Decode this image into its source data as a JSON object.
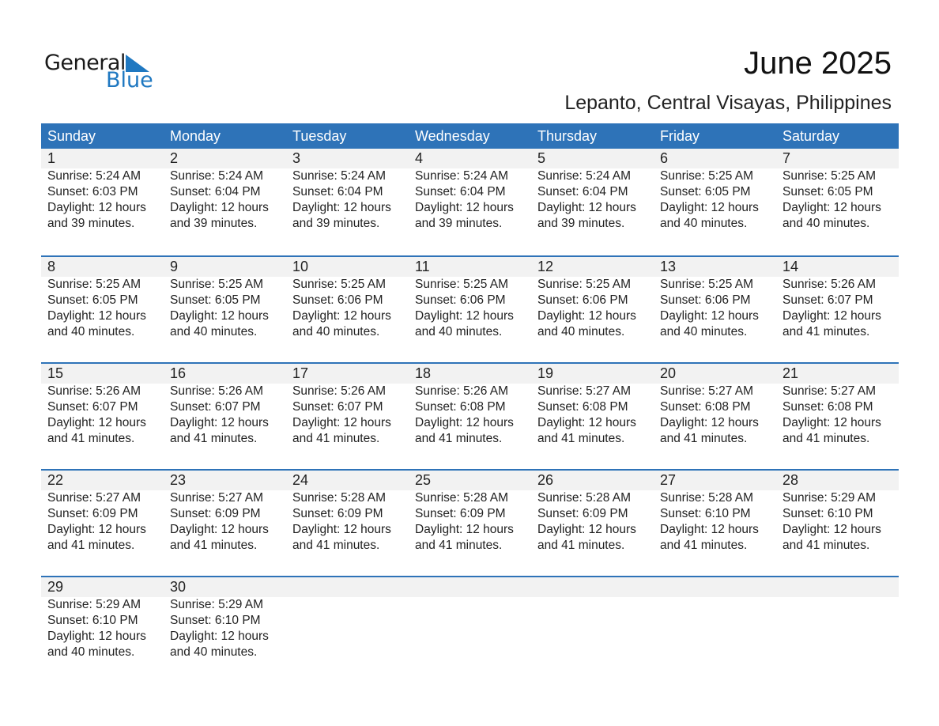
{
  "logo": {
    "word1": "General",
    "word2": "Blue",
    "color": "#1f78c1"
  },
  "title": "June 2025",
  "subtitle": "Lepanto, Central Visayas, Philippines",
  "header_color": "#2e73b8",
  "weekdays": [
    "Sunday",
    "Monday",
    "Tuesday",
    "Wednesday",
    "Thursday",
    "Friday",
    "Saturday"
  ],
  "start_offset": 0,
  "days": [
    {
      "d": "1",
      "sunrise": "Sunrise: 5:24 AM",
      "sunset": "Sunset: 6:03 PM",
      "daylight": "Daylight: 12 hours",
      "minutes": "and 39 minutes."
    },
    {
      "d": "2",
      "sunrise": "Sunrise: 5:24 AM",
      "sunset": "Sunset: 6:04 PM",
      "daylight": "Daylight: 12 hours",
      "minutes": "and 39 minutes."
    },
    {
      "d": "3",
      "sunrise": "Sunrise: 5:24 AM",
      "sunset": "Sunset: 6:04 PM",
      "daylight": "Daylight: 12 hours",
      "minutes": "and 39 minutes."
    },
    {
      "d": "4",
      "sunrise": "Sunrise: 5:24 AM",
      "sunset": "Sunset: 6:04 PM",
      "daylight": "Daylight: 12 hours",
      "minutes": "and 39 minutes."
    },
    {
      "d": "5",
      "sunrise": "Sunrise: 5:24 AM",
      "sunset": "Sunset: 6:04 PM",
      "daylight": "Daylight: 12 hours",
      "minutes": "and 39 minutes."
    },
    {
      "d": "6",
      "sunrise": "Sunrise: 5:25 AM",
      "sunset": "Sunset: 6:05 PM",
      "daylight": "Daylight: 12 hours",
      "minutes": "and 40 minutes."
    },
    {
      "d": "7",
      "sunrise": "Sunrise: 5:25 AM",
      "sunset": "Sunset: 6:05 PM",
      "daylight": "Daylight: 12 hours",
      "minutes": "and 40 minutes."
    },
    {
      "d": "8",
      "sunrise": "Sunrise: 5:25 AM",
      "sunset": "Sunset: 6:05 PM",
      "daylight": "Daylight: 12 hours",
      "minutes": "and 40 minutes."
    },
    {
      "d": "9",
      "sunrise": "Sunrise: 5:25 AM",
      "sunset": "Sunset: 6:05 PM",
      "daylight": "Daylight: 12 hours",
      "minutes": "and 40 minutes."
    },
    {
      "d": "10",
      "sunrise": "Sunrise: 5:25 AM",
      "sunset": "Sunset: 6:06 PM",
      "daylight": "Daylight: 12 hours",
      "minutes": "and 40 minutes."
    },
    {
      "d": "11",
      "sunrise": "Sunrise: 5:25 AM",
      "sunset": "Sunset: 6:06 PM",
      "daylight": "Daylight: 12 hours",
      "minutes": "and 40 minutes."
    },
    {
      "d": "12",
      "sunrise": "Sunrise: 5:25 AM",
      "sunset": "Sunset: 6:06 PM",
      "daylight": "Daylight: 12 hours",
      "minutes": "and 40 minutes."
    },
    {
      "d": "13",
      "sunrise": "Sunrise: 5:25 AM",
      "sunset": "Sunset: 6:06 PM",
      "daylight": "Daylight: 12 hours",
      "minutes": "and 40 minutes."
    },
    {
      "d": "14",
      "sunrise": "Sunrise: 5:26 AM",
      "sunset": "Sunset: 6:07 PM",
      "daylight": "Daylight: 12 hours",
      "minutes": "and 41 minutes."
    },
    {
      "d": "15",
      "sunrise": "Sunrise: 5:26 AM",
      "sunset": "Sunset: 6:07 PM",
      "daylight": "Daylight: 12 hours",
      "minutes": "and 41 minutes."
    },
    {
      "d": "16",
      "sunrise": "Sunrise: 5:26 AM",
      "sunset": "Sunset: 6:07 PM",
      "daylight": "Daylight: 12 hours",
      "minutes": "and 41 minutes."
    },
    {
      "d": "17",
      "sunrise": "Sunrise: 5:26 AM",
      "sunset": "Sunset: 6:07 PM",
      "daylight": "Daylight: 12 hours",
      "minutes": "and 41 minutes."
    },
    {
      "d": "18",
      "sunrise": "Sunrise: 5:26 AM",
      "sunset": "Sunset: 6:08 PM",
      "daylight": "Daylight: 12 hours",
      "minutes": "and 41 minutes."
    },
    {
      "d": "19",
      "sunrise": "Sunrise: 5:27 AM",
      "sunset": "Sunset: 6:08 PM",
      "daylight": "Daylight: 12 hours",
      "minutes": "and 41 minutes."
    },
    {
      "d": "20",
      "sunrise": "Sunrise: 5:27 AM",
      "sunset": "Sunset: 6:08 PM",
      "daylight": "Daylight: 12 hours",
      "minutes": "and 41 minutes."
    },
    {
      "d": "21",
      "sunrise": "Sunrise: 5:27 AM",
      "sunset": "Sunset: 6:08 PM",
      "daylight": "Daylight: 12 hours",
      "minutes": "and 41 minutes."
    },
    {
      "d": "22",
      "sunrise": "Sunrise: 5:27 AM",
      "sunset": "Sunset: 6:09 PM",
      "daylight": "Daylight: 12 hours",
      "minutes": "and 41 minutes."
    },
    {
      "d": "23",
      "sunrise": "Sunrise: 5:27 AM",
      "sunset": "Sunset: 6:09 PM",
      "daylight": "Daylight: 12 hours",
      "minutes": "and 41 minutes."
    },
    {
      "d": "24",
      "sunrise": "Sunrise: 5:28 AM",
      "sunset": "Sunset: 6:09 PM",
      "daylight": "Daylight: 12 hours",
      "minutes": "and 41 minutes."
    },
    {
      "d": "25",
      "sunrise": "Sunrise: 5:28 AM",
      "sunset": "Sunset: 6:09 PM",
      "daylight": "Daylight: 12 hours",
      "minutes": "and 41 minutes."
    },
    {
      "d": "26",
      "sunrise": "Sunrise: 5:28 AM",
      "sunset": "Sunset: 6:09 PM",
      "daylight": "Daylight: 12 hours",
      "minutes": "and 41 minutes."
    },
    {
      "d": "27",
      "sunrise": "Sunrise: 5:28 AM",
      "sunset": "Sunset: 6:10 PM",
      "daylight": "Daylight: 12 hours",
      "minutes": "and 41 minutes."
    },
    {
      "d": "28",
      "sunrise": "Sunrise: 5:29 AM",
      "sunset": "Sunset: 6:10 PM",
      "daylight": "Daylight: 12 hours",
      "minutes": "and 41 minutes."
    },
    {
      "d": "29",
      "sunrise": "Sunrise: 5:29 AM",
      "sunset": "Sunset: 6:10 PM",
      "daylight": "Daylight: 12 hours",
      "minutes": "and 40 minutes."
    },
    {
      "d": "30",
      "sunrise": "Sunrise: 5:29 AM",
      "sunset": "Sunset: 6:10 PM",
      "daylight": "Daylight: 12 hours",
      "minutes": "and 40 minutes."
    }
  ]
}
